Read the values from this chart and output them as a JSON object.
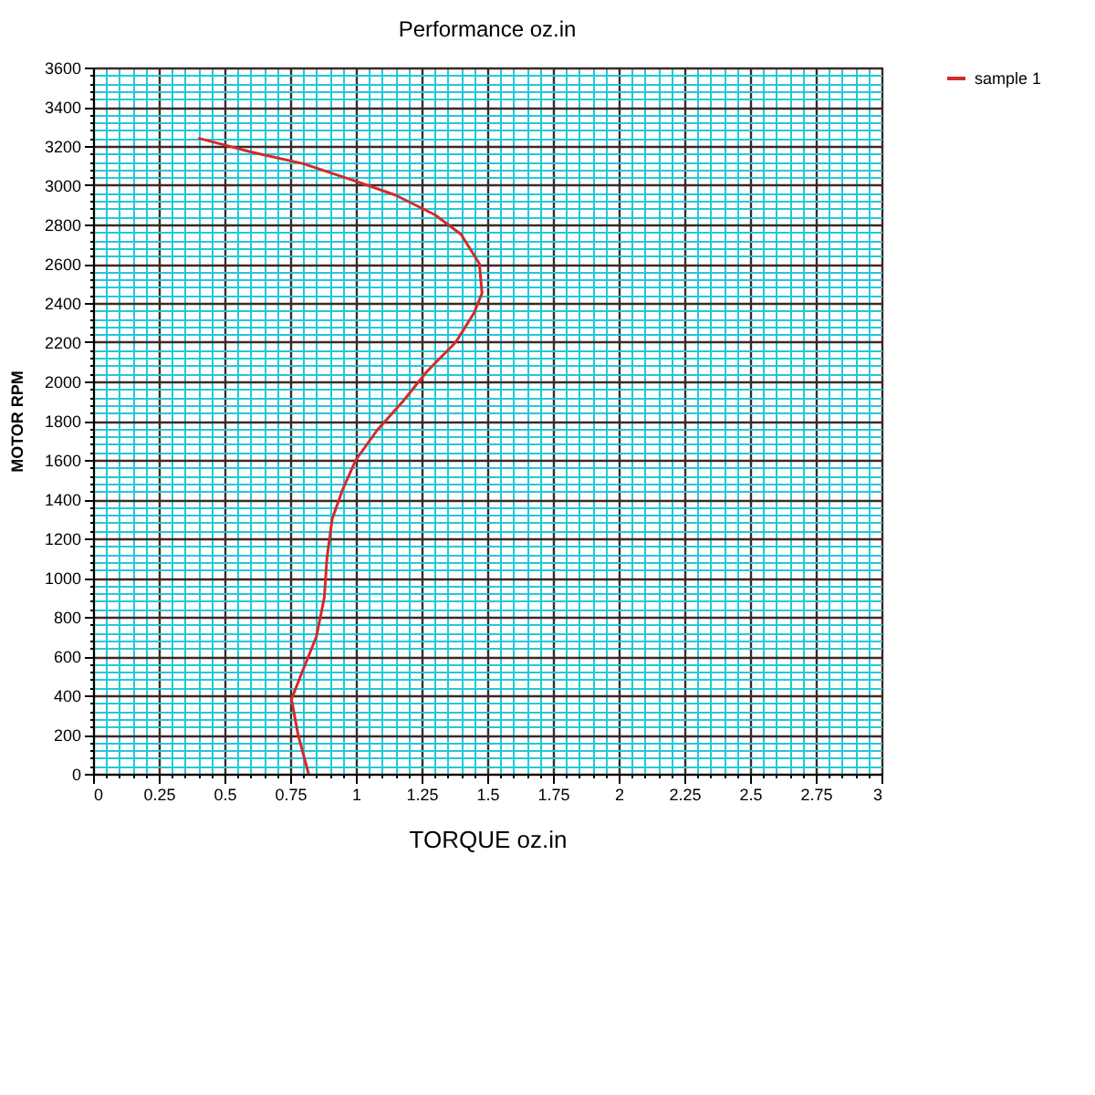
{
  "chart_data": {
    "type": "line",
    "title": "Performance oz.in",
    "xlabel": "TORQUE  oz.in",
    "ylabel": "MOTOR RPM",
    "xlim": [
      0,
      3
    ],
    "xticks": [
      0,
      {
        "value": 0.05,
        "label": null
      },
      {
        "value": 0.1,
        "label": null
      },
      {
        "value": 0.15,
        "label": null
      },
      {
        "value": 0.2,
        "label": null
      },
      0.25,
      {
        "value": 0.3,
        "label": null
      },
      {
        "value": 0.35,
        "label": null
      },
      {
        "value": 0.4,
        "label": null
      },
      {
        "value": 0.45,
        "label": null
      },
      0.5,
      {
        "value": 0.55,
        "label": null
      },
      {
        "value": 0.6,
        "label": null
      },
      {
        "value": 0.65,
        "label": null
      },
      {
        "value": 0.7,
        "label": null
      },
      0.75,
      {
        "value": 0.8,
        "label": null
      },
      {
        "value": 0.85,
        "label": null
      },
      {
        "value": 0.9,
        "label": null
      },
      {
        "value": 0.95,
        "label": null
      },
      1,
      {
        "value": 1.05,
        "label": null
      },
      {
        "value": 1.1,
        "label": null
      },
      {
        "value": 1.15,
        "label": null
      },
      {
        "value": 1.2,
        "label": null
      },
      1.25,
      {
        "value": 1.3,
        "label": null
      },
      {
        "value": 1.35,
        "label": null
      },
      {
        "value": 1.4,
        "label": null
      },
      {
        "value": 1.45,
        "label": null
      },
      1.5,
      {
        "value": 1.55,
        "label": null
      },
      {
        "value": 1.6,
        "label": null
      },
      {
        "value": 1.65,
        "label": null
      },
      {
        "value": 1.7,
        "label": null
      },
      1.75,
      {
        "value": 1.8,
        "label": null
      },
      {
        "value": 1.85,
        "label": null
      },
      {
        "value": 1.9,
        "label": null
      },
      {
        "value": 1.95,
        "label": null
      },
      2,
      {
        "value": 2.05,
        "label": null
      },
      {
        "value": 2.1,
        "label": null
      },
      {
        "value": 2.15,
        "label": null
      },
      {
        "value": 2.2,
        "label": null
      },
      2.25,
      {
        "value": 2.3,
        "label": null
      },
      {
        "value": 2.35,
        "label": null
      },
      {
        "value": 2.4,
        "label": null
      },
      {
        "value": 2.45,
        "label": null
      },
      2.5,
      {
        "value": 2.55,
        "label": null
      },
      {
        "value": 2.6,
        "label": null
      },
      {
        "value": 2.65,
        "label": null
      },
      {
        "value": 2.7,
        "label": null
      },
      2.75,
      {
        "value": 2.8,
        "label": null
      },
      {
        "value": 2.85,
        "label": null
      },
      {
        "value": 2.9,
        "label": null
      },
      {
        "value": 2.95,
        "label": null
      },
      3
    ],
    "ylim": [
      0,
      3600
    ],
    "yticks": [
      0,
      {
        "value": 40,
        "label": null
      },
      {
        "value": 80,
        "label": null
      },
      {
        "value": 120,
        "label": null
      },
      {
        "value": 160,
        "label": null
      },
      200,
      {
        "value": 240,
        "label": null
      },
      {
        "value": 280,
        "label": null
      },
      {
        "value": 320,
        "label": null
      },
      {
        "value": 360,
        "label": null
      },
      400,
      {
        "value": 440,
        "label": null
      },
      {
        "value": 480,
        "label": null
      },
      {
        "value": 520,
        "label": null
      },
      {
        "value": 560,
        "label": null
      },
      600,
      {
        "value": 640,
        "label": null
      },
      {
        "value": 680,
        "label": null
      },
      {
        "value": 720,
        "label": null
      },
      {
        "value": 760,
        "label": null
      },
      800,
      {
        "value": 840,
        "label": null
      },
      {
        "value": 880,
        "label": null
      },
      {
        "value": 920,
        "label": null
      },
      {
        "value": 960,
        "label": null
      },
      1000,
      {
        "value": 1040,
        "label": null
      },
      {
        "value": 1080,
        "label": null
      },
      {
        "value": 1120,
        "label": null
      },
      {
        "value": 1160,
        "label": null
      },
      1200,
      {
        "value": 1240,
        "label": null
      },
      {
        "value": 1280,
        "label": null
      },
      {
        "value": 1320,
        "label": null
      },
      {
        "value": 1360,
        "label": null
      },
      1400,
      {
        "value": 1440,
        "label": null
      },
      {
        "value": 1480,
        "label": null
      },
      {
        "value": 1520,
        "label": null
      },
      {
        "value": 1560,
        "label": null
      },
      1600,
      {
        "value": 1640,
        "label": null
      },
      {
        "value": 1680,
        "label": null
      },
      {
        "value": 1720,
        "label": null
      },
      {
        "value": 1760,
        "label": null
      },
      1800,
      {
        "value": 1840,
        "label": null
      },
      {
        "value": 1880,
        "label": null
      },
      {
        "value": 1920,
        "label": null
      },
      {
        "value": 1960,
        "label": null
      },
      2000,
      {
        "value": 2040,
        "label": null
      },
      {
        "value": 2080,
        "label": null
      },
      {
        "value": 2120,
        "label": null
      },
      {
        "value": 2160,
        "label": null
      },
      2200,
      {
        "value": 2240,
        "label": null
      },
      {
        "value": 2280,
        "label": null
      },
      {
        "value": 2320,
        "label": null
      },
      {
        "value": 2360,
        "label": null
      },
      2400,
      {
        "value": 2440,
        "label": null
      },
      {
        "value": 2480,
        "label": null
      },
      {
        "value": 2520,
        "label": null
      },
      {
        "value": 2560,
        "label": null
      },
      2600,
      {
        "value": 2640,
        "label": null
      },
      {
        "value": 2680,
        "label": null
      },
      {
        "value": 2720,
        "label": null
      },
      {
        "value": 2760,
        "label": null
      },
      2800,
      {
        "value": 2840,
        "label": null
      },
      {
        "value": 2880,
        "label": null
      },
      {
        "value": 2920,
        "label": null
      },
      {
        "value": 2960,
        "label": null
      },
      3000,
      {
        "value": 3040,
        "label": null
      },
      {
        "value": 3080,
        "label": null
      },
      {
        "value": 3120,
        "label": null
      },
      {
        "value": 3160,
        "label": null
      },
      3200,
      {
        "value": 3240,
        "label": null
      },
      {
        "value": 3280,
        "label": null
      },
      {
        "value": 3320,
        "label": null
      },
      {
        "value": 3360,
        "label": null
      },
      3400,
      {
        "value": 3440,
        "label": null
      },
      {
        "value": 3480,
        "label": null
      },
      {
        "value": 3520,
        "label": null
      },
      {
        "value": 3560,
        "label": null
      },
      3600
    ],
    "grid": true,
    "legend": "right",
    "marker": "none",
    "line_style": "solid",
    "series": [
      {
        "name": "sample 1",
        "color": "#d42a2a",
        "x": [
          0.82,
          0.78,
          0.755,
          0.79,
          0.85,
          0.88,
          0.89,
          0.91,
          0.95,
          1.0,
          1.08,
          1.18,
          1.27,
          1.38,
          1.45,
          1.48,
          1.47,
          1.4,
          1.3,
          1.15,
          1.0,
          0.8,
          0.6,
          0.4
        ],
        "values": [
          0,
          200,
          380,
          500,
          700,
          900,
          1100,
          1300,
          1450,
          1600,
          1750,
          1900,
          2050,
          2200,
          2350,
          2450,
          2600,
          2750,
          2850,
          2950,
          3020,
          3110,
          3170,
          3240
        ]
      }
    ]
  }
}
